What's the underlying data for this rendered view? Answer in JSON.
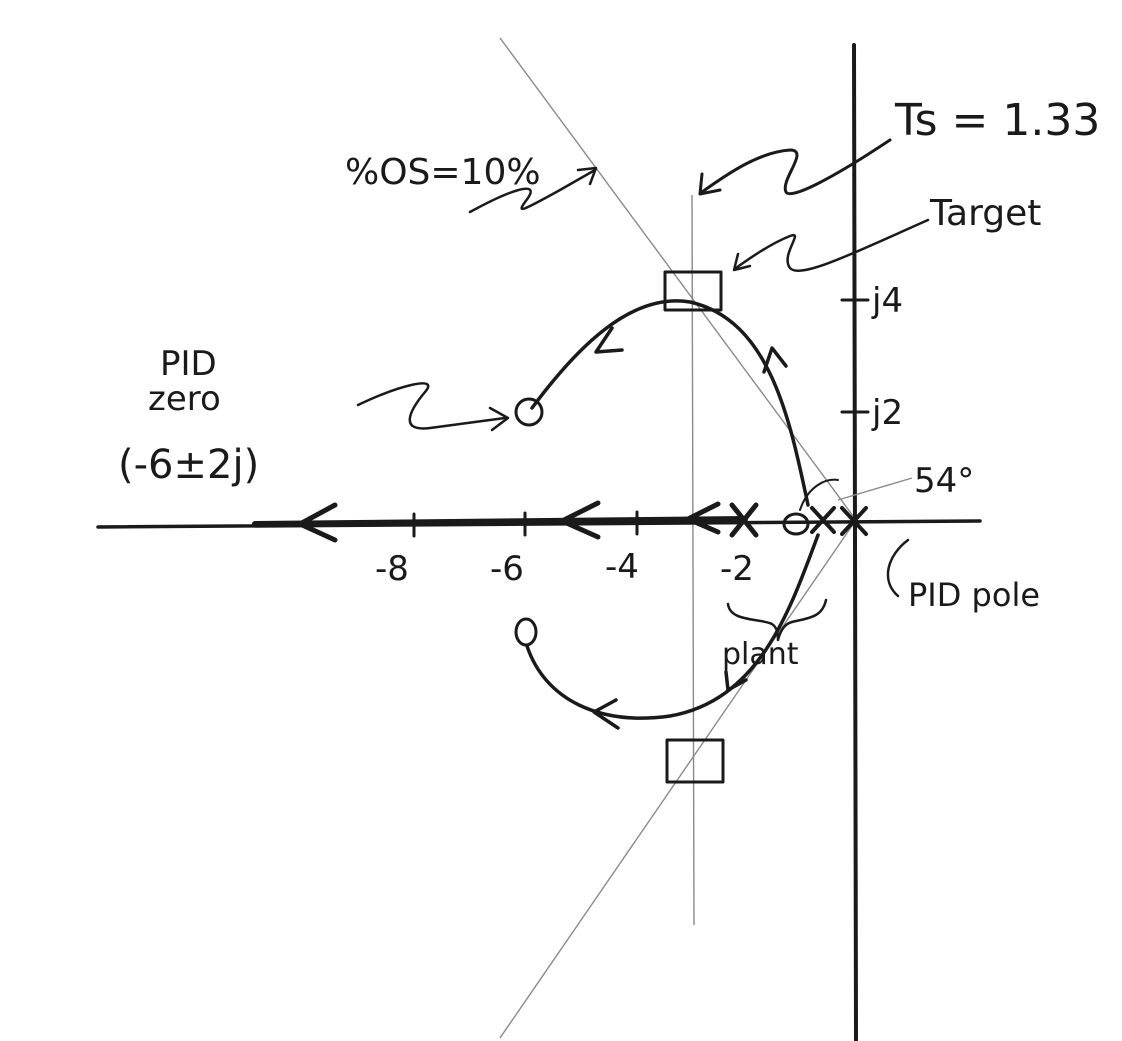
{
  "annotations": {
    "overshoot": "%OS=10%",
    "settling_time": "Ts = 1.33",
    "target": "Target",
    "pid_zero_line1": "PID",
    "pid_zero_line2": "zero",
    "pid_zero_value": "(-6±2j)",
    "angle": "54°",
    "pid_pole": "PID pole",
    "plant": "plant"
  },
  "axis": {
    "real_tick_labels": [
      "-8",
      "-6",
      "-4",
      "-2"
    ],
    "imag_tick_labels": [
      "j4",
      "j2"
    ]
  }
}
